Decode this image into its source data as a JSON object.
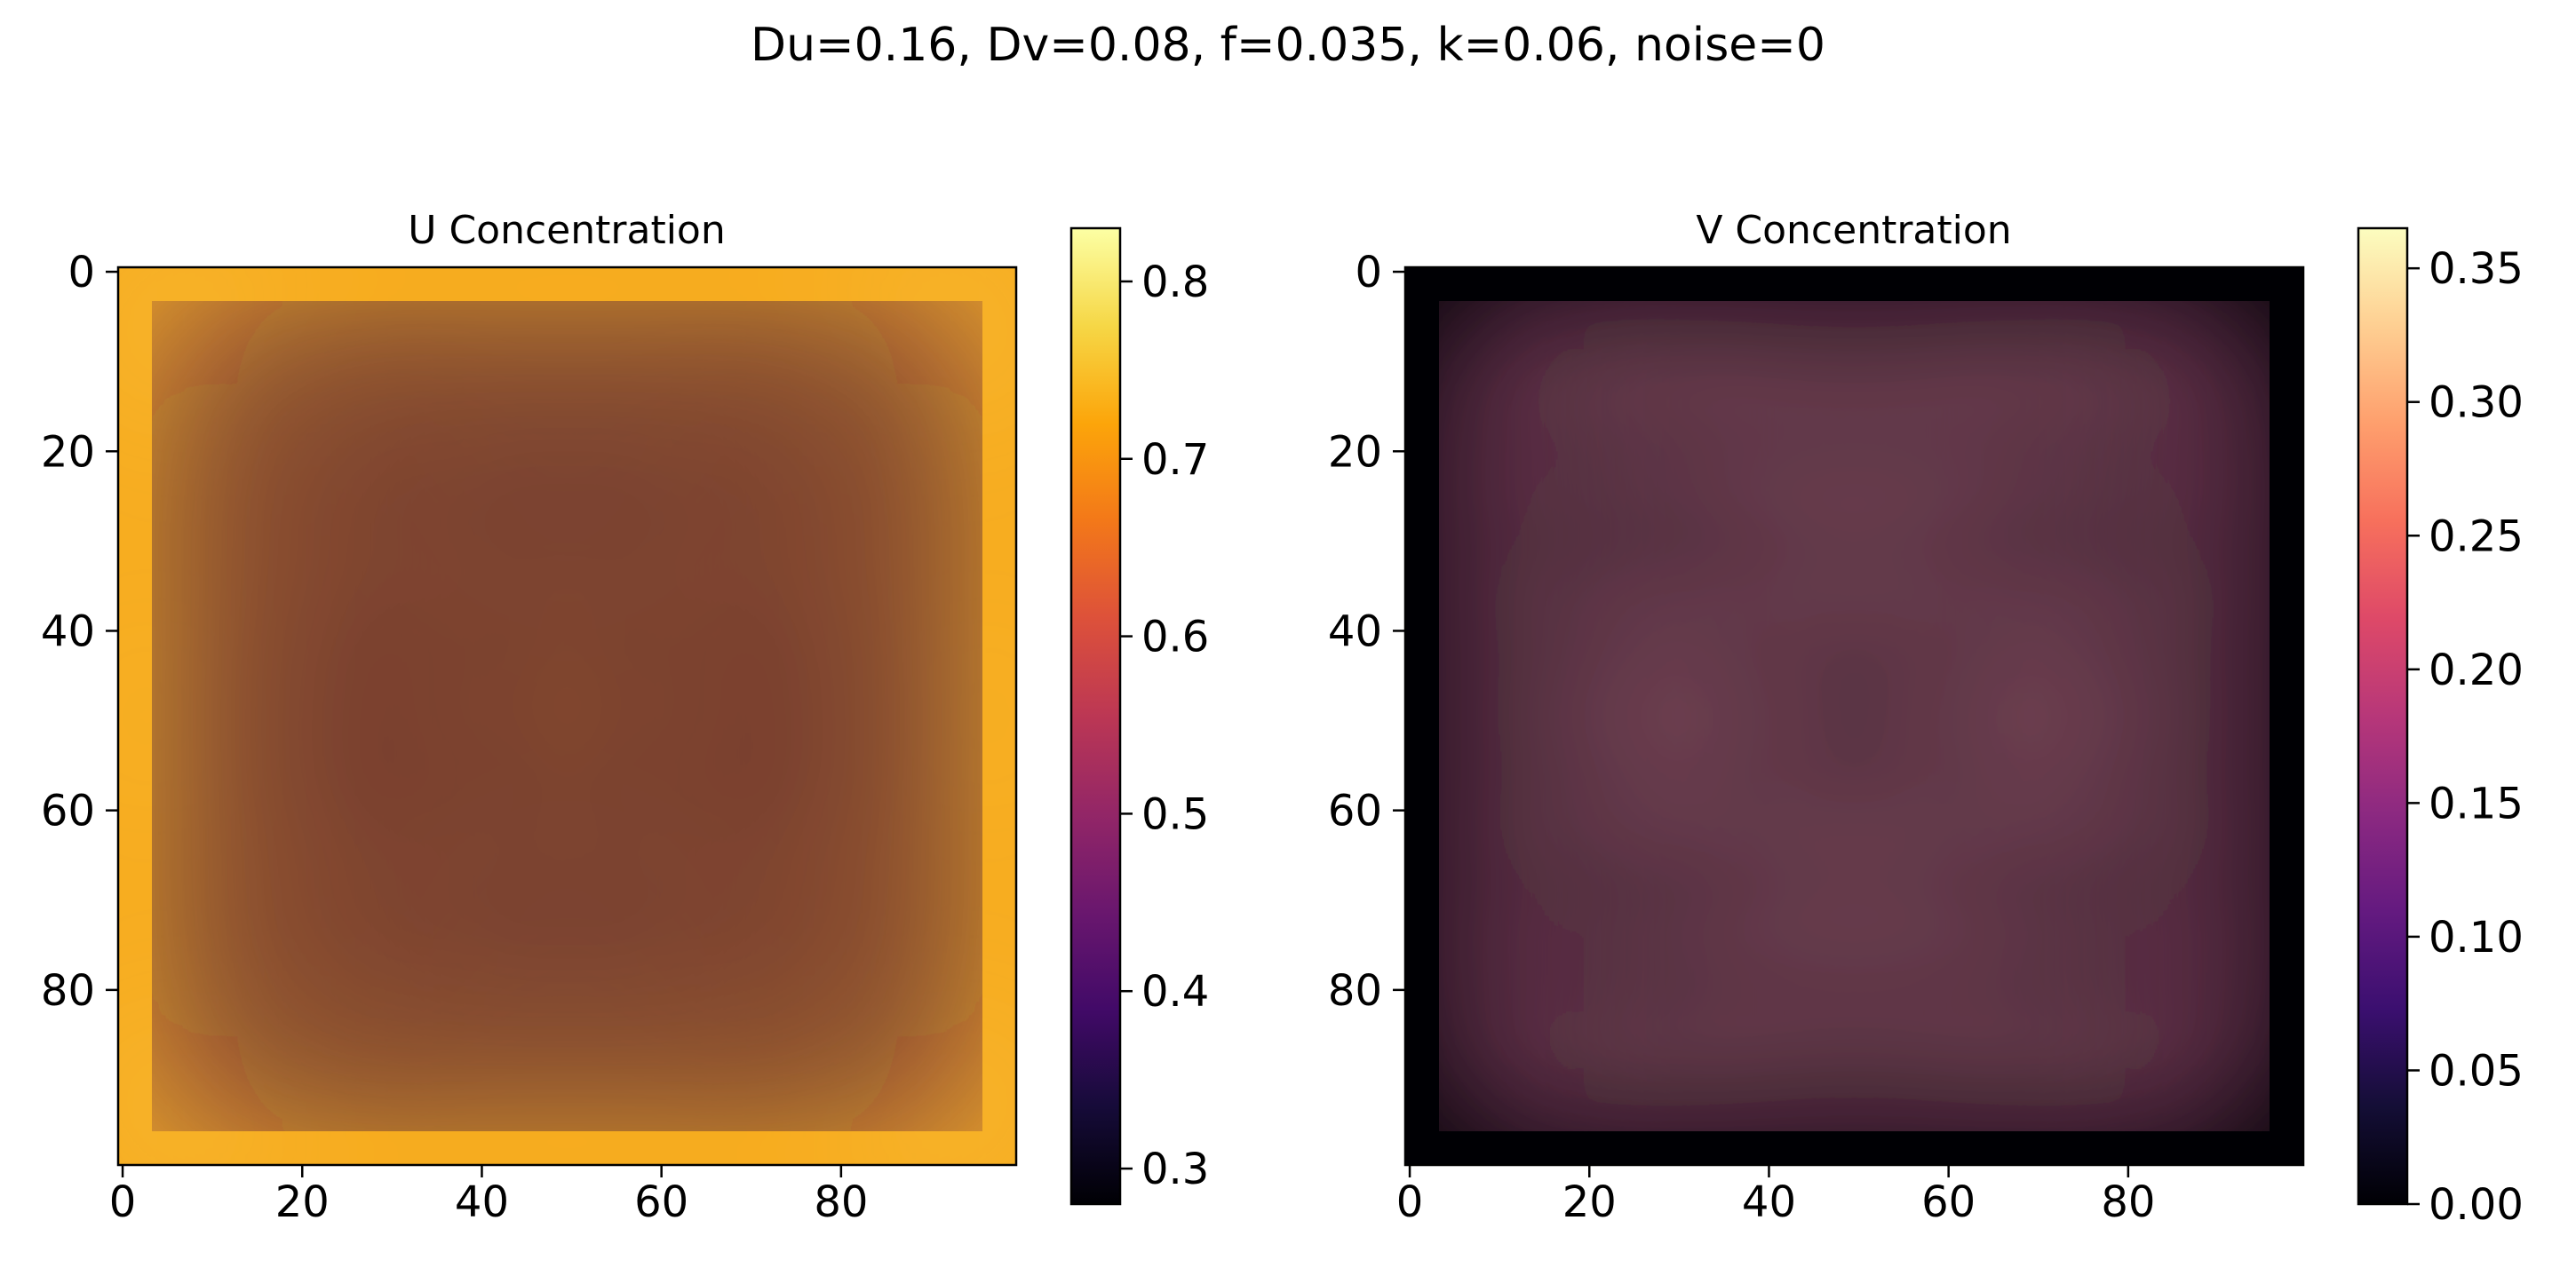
{
  "suptitle": "Du=0.16, Dv=0.08, f=0.035, k=0.06, noise=0",
  "chart_data": [
    {
      "type": "heatmap",
      "title": "U Concentration",
      "colormap": "inferno",
      "grid": false,
      "xlim": [
        0,
        100
      ],
      "ylim": [
        100,
        0
      ],
      "x_ticks": [
        "0",
        "20",
        "40",
        "60",
        "80"
      ],
      "y_ticks": [
        "0",
        "20",
        "40",
        "60",
        "80"
      ],
      "colorbar": {
        "range": [
          0.28,
          0.83
        ],
        "ticks": [
          "0.3",
          "0.4",
          "0.5",
          "0.6",
          "0.7",
          "0.8"
        ]
      }
    },
    {
      "type": "heatmap",
      "title": "V Concentration",
      "colormap": "magma",
      "grid": false,
      "xlim": [
        0,
        100
      ],
      "ylim": [
        100,
        0
      ],
      "x_ticks": [
        "0",
        "20",
        "40",
        "60",
        "80"
      ],
      "y_ticks": [
        "0",
        "20",
        "40",
        "60",
        "80"
      ],
      "colorbar": {
        "range": [
          0.0,
          0.365
        ],
        "ticks": [
          "0.00",
          "0.05",
          "0.10",
          "0.15",
          "0.20",
          "0.25",
          "0.30",
          "0.35"
        ]
      }
    }
  ]
}
